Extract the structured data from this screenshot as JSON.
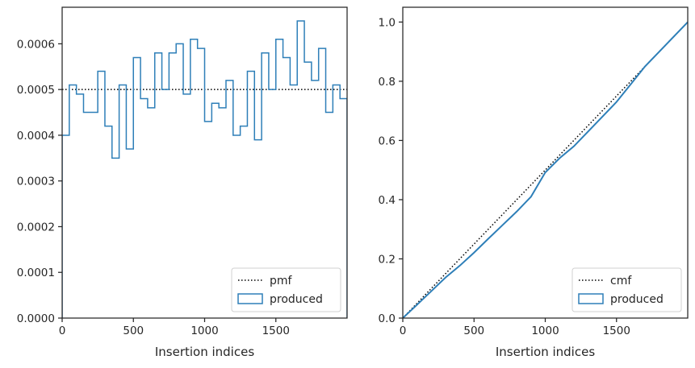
{
  "chart_data": [
    {
      "type": "step",
      "xlabel": "Insertion indices",
      "ylabel": "",
      "xlim": [
        0,
        2000
      ],
      "ylim": [
        0,
        0.00068
      ],
      "xticks": [
        0,
        500,
        1000,
        1500
      ],
      "xtick_labels": [
        "0",
        "500",
        "1000",
        "1500"
      ],
      "yticks": [
        0,
        0.0001,
        0.0002,
        0.0003,
        0.0004,
        0.0005,
        0.0006
      ],
      "ytick_labels": [
        "0.0000",
        "0.0001",
        "0.0002",
        "0.0003",
        "0.0004",
        "0.0005",
        "0.0006"
      ],
      "grid": false,
      "legend_position": "lower-right",
      "series": [
        {
          "name": "pmf",
          "style": "dotted",
          "color": "#000000",
          "x": [
            0,
            2000
          ],
          "y": [
            0.0005,
            0.0005
          ]
        },
        {
          "name": "produced",
          "style": "step",
          "color": "#2e7fb8",
          "bin_width": 50,
          "bin_edges_start": 0,
          "values": [
            0.0004,
            0.00051,
            0.00049,
            0.00045,
            0.00045,
            0.00054,
            0.00042,
            0.00035,
            0.00051,
            0.00037,
            0.00057,
            0.00048,
            0.00046,
            0.00058,
            0.0005,
            0.00058,
            0.0006,
            0.00049,
            0.00061,
            0.00059,
            0.00043,
            0.00047,
            0.00046,
            0.00052,
            0.0004,
            0.00042,
            0.00054,
            0.00039,
            0.00058,
            0.0005,
            0.00061,
            0.00057,
            0.00051,
            0.00065,
            0.00056,
            0.00052,
            0.00059,
            0.00045,
            0.00051,
            0.00048
          ]
        }
      ],
      "legend": [
        {
          "label": "pmf",
          "kind": "dotted-line"
        },
        {
          "label": "produced",
          "kind": "box"
        }
      ]
    },
    {
      "type": "line",
      "xlabel": "Insertion indices",
      "ylabel": "",
      "xlim": [
        0,
        2000
      ],
      "ylim": [
        0,
        1.05
      ],
      "xticks": [
        0,
        500,
        1000,
        1500
      ],
      "xtick_labels": [
        "0",
        "500",
        "1000",
        "1500"
      ],
      "yticks": [
        0,
        0.2,
        0.4,
        0.6,
        0.8,
        1.0
      ],
      "ytick_labels": [
        "0.0",
        "0.2",
        "0.4",
        "0.6",
        "0.8",
        "1.0"
      ],
      "grid": false,
      "legend_position": "lower-right",
      "series": [
        {
          "name": "cmf",
          "style": "dotted",
          "color": "#000000",
          "x": [
            0,
            2000
          ],
          "y": [
            0,
            1.0
          ]
        },
        {
          "name": "produced",
          "style": "line",
          "color": "#2e7fb8",
          "x": [
            0,
            100,
            200,
            300,
            400,
            500,
            600,
            700,
            800,
            900,
            1000,
            1100,
            1200,
            1300,
            1400,
            1500,
            1600,
            1700,
            1800,
            1900,
            2000
          ],
          "y": [
            0,
            0.045,
            0.091,
            0.137,
            0.177,
            0.221,
            0.268,
            0.314,
            0.36,
            0.41,
            0.492,
            0.54,
            0.58,
            0.63,
            0.68,
            0.73,
            0.79,
            0.85,
            0.9,
            0.95,
            1.0
          ]
        }
      ],
      "legend": [
        {
          "label": "cmf",
          "kind": "dotted-line"
        },
        {
          "label": "produced",
          "kind": "box"
        }
      ]
    }
  ]
}
